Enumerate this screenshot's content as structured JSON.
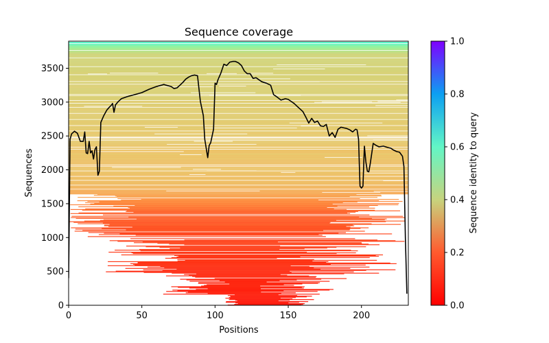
{
  "chart_data": {
    "type": "heatmap",
    "title": "Sequence coverage",
    "xlabel": "Positions",
    "ylabel": "Sequences",
    "colorbar_label": "Sequence identity to query",
    "colormap": "rainbow_r",
    "xlim": [
      0,
      232
    ],
    "ylim": [
      0,
      3900
    ],
    "clim": [
      0.0,
      1.0
    ],
    "x_ticks": [
      0,
      50,
      100,
      150,
      200
    ],
    "y_ticks": [
      0,
      500,
      1000,
      1500,
      2000,
      2500,
      3000,
      3500
    ],
    "colorbar_ticks": [
      0.0,
      0.2,
      0.4,
      0.6,
      0.8,
      1.0
    ],
    "x_tick_labels": [
      "0",
      "50",
      "100",
      "150",
      "200"
    ],
    "y_tick_labels": [
      "0",
      "500",
      "1000",
      "1500",
      "2000",
      "2500",
      "3000",
      "3500"
    ],
    "colorbar_tick_labels": [
      "0.0",
      "0.2",
      "0.4",
      "0.6",
      "0.8",
      "1.0"
    ],
    "coverage_line": {
      "color": "#000000",
      "x": [
        0,
        1,
        2,
        4,
        6,
        8,
        10,
        11,
        12,
        13,
        14,
        15,
        16,
        17,
        18,
        19,
        20,
        21,
        22,
        24,
        26,
        28,
        29,
        30,
        31,
        32,
        34,
        36,
        40,
        45,
        50,
        55,
        60,
        65,
        70,
        72,
        74,
        76,
        78,
        80,
        82,
        84,
        86,
        88,
        90,
        92,
        93,
        95,
        96,
        97,
        98,
        99,
        100,
        101,
        102,
        104,
        106,
        108,
        110,
        112,
        114,
        116,
        118,
        120,
        122,
        124,
        126,
        128,
        130,
        132,
        135,
        138,
        140,
        142,
        145,
        148,
        150,
        152,
        154,
        156,
        160,
        162,
        164,
        166,
        168,
        170,
        172,
        174,
        176,
        178,
        180,
        182,
        184,
        186,
        188,
        190,
        192,
        194,
        196,
        197,
        198,
        199,
        200,
        201,
        202,
        203,
        204,
        205,
        206,
        208,
        210,
        212,
        215,
        218,
        220,
        222,
        224,
        226,
        228,
        229,
        230,
        231
      ],
      "y": [
        400,
        2450,
        2530,
        2570,
        2540,
        2420,
        2420,
        2560,
        2250,
        2240,
        2420,
        2250,
        2280,
        2160,
        2300,
        2340,
        1920,
        1980,
        2700,
        2800,
        2880,
        2930,
        2950,
        2980,
        2850,
        2960,
        3010,
        3050,
        3080,
        3110,
        3140,
        3190,
        3230,
        3260,
        3230,
        3200,
        3210,
        3250,
        3290,
        3340,
        3370,
        3390,
        3400,
        3390,
        3010,
        2800,
        2450,
        2180,
        2360,
        2400,
        2500,
        2600,
        3280,
        3260,
        3330,
        3430,
        3560,
        3540,
        3590,
        3600,
        3600,
        3580,
        3540,
        3460,
        3420,
        3420,
        3350,
        3360,
        3330,
        3300,
        3280,
        3250,
        3110,
        3080,
        3030,
        3050,
        3040,
        3010,
        2980,
        2940,
        2860,
        2780,
        2690,
        2760,
        2700,
        2720,
        2650,
        2640,
        2670,
        2500,
        2550,
        2480,
        2600,
        2630,
        2620,
        2610,
        2590,
        2560,
        2600,
        2590,
        2450,
        1760,
        1730,
        1760,
        2350,
        2120,
        1980,
        1970,
        2090,
        2390,
        2360,
        2340,
        2350,
        2330,
        2320,
        2290,
        2270,
        2260,
        2200,
        2050,
        1000,
        170
      ]
    }
  }
}
